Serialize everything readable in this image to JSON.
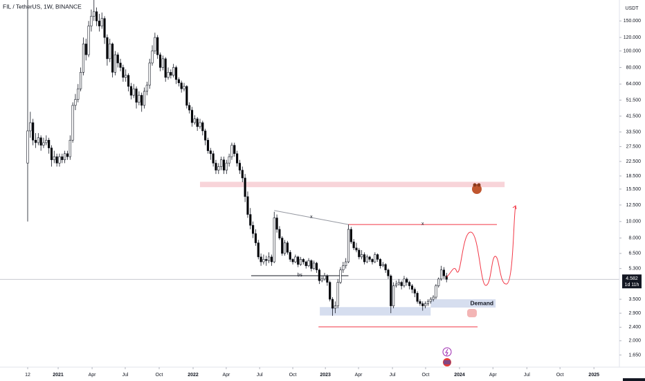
{
  "chart_data": {
    "type": "candlestick",
    "title": "FIL / TetherUS, 1W, BINANCE",
    "currency": "USDT",
    "log_scale": true,
    "grid": false,
    "up_color": "#ffffff",
    "down_color": "#000000",
    "ylim": [
      1.4,
      199
    ],
    "yticks": [
      {
        "value": 150,
        "label": "150.000"
      },
      {
        "value": 120,
        "label": "120.000"
      },
      {
        "value": 100,
        "label": "100.000"
      },
      {
        "value": 80,
        "label": "80.000"
      },
      {
        "value": 64,
        "label": "64.000"
      },
      {
        "value": 51.5,
        "label": "51.500"
      },
      {
        "value": 41.5,
        "label": "41.500"
      },
      {
        "value": 33.5,
        "label": "33.500"
      },
      {
        "value": 27.5,
        "label": "27.500"
      },
      {
        "value": 22.5,
        "label": "22.500"
      },
      {
        "value": 18.5,
        "label": "18.500"
      },
      {
        "value": 15.5,
        "label": "15.500"
      },
      {
        "value": 12.5,
        "label": "12.500"
      },
      {
        "value": 10,
        "label": "10.000"
      },
      {
        "value": 8,
        "label": "8.000"
      },
      {
        "value": 6.5,
        "label": "6.500"
      },
      {
        "value": 5.3,
        "label": "5.300"
      },
      {
        "value": 3.5,
        "label": "3.500"
      },
      {
        "value": 2.9,
        "label": "2.900"
      },
      {
        "value": 2.4,
        "label": "2.400"
      },
      {
        "value": 2,
        "label": "2.000"
      },
      {
        "value": 1.65,
        "label": "1.650"
      }
    ],
    "xlim": [
      -10.44,
      223.2
    ],
    "xticks": [
      {
        "value": 0,
        "label": "12"
      },
      {
        "value": 11.5,
        "label": "2021"
      },
      {
        "value": 24.3,
        "label": "Apr"
      },
      {
        "value": 36.8,
        "label": "Jul"
      },
      {
        "value": 49.6,
        "label": "Oct"
      },
      {
        "value": 62.4,
        "label": "2022"
      },
      {
        "value": 74.9,
        "label": "Apr"
      },
      {
        "value": 87.5,
        "label": "Jul"
      },
      {
        "value": 100,
        "label": "Oct"
      },
      {
        "value": 112.3,
        "label": "2023"
      },
      {
        "value": 124.8,
        "label": "Apr"
      },
      {
        "value": 137.6,
        "label": "Jul"
      },
      {
        "value": 150.1,
        "label": "Oct"
      },
      {
        "value": 162.9,
        "label": "2024"
      },
      {
        "value": 175.5,
        "label": "Apr"
      },
      {
        "value": 188.3,
        "label": "Jul"
      },
      {
        "value": 200.8,
        "label": "Oct"
      },
      {
        "value": 213.6,
        "label": "2025"
      }
    ],
    "last_price": 4.582,
    "countdown": "1d 11h",
    "candles": [
      [
        22,
        199,
        10,
        34
      ],
      [
        34,
        44,
        31,
        38
      ],
      [
        38,
        40,
        28,
        30
      ],
      [
        30,
        33,
        27,
        29
      ],
      [
        29,
        33,
        28,
        31
      ],
      [
        31,
        32,
        26,
        28
      ],
      [
        28,
        31,
        27,
        29
      ],
      [
        29,
        32,
        28,
        30
      ],
      [
        30,
        31,
        25,
        27
      ],
      [
        27,
        28,
        21,
        23
      ],
      [
        23,
        26,
        22,
        24
      ],
      [
        24,
        25,
        21,
        22
      ],
      [
        22,
        25,
        21,
        24
      ],
      [
        24,
        25,
        22,
        23
      ],
      [
        23,
        26,
        22,
        25
      ],
      [
        25,
        26,
        23,
        24
      ],
      [
        24,
        32,
        23,
        30
      ],
      [
        30,
        50,
        29,
        48
      ],
      [
        48,
        56,
        45,
        52
      ],
      [
        52,
        64,
        50,
        60
      ],
      [
        60,
        80,
        58,
        75
      ],
      [
        75,
        120,
        72,
        110
      ],
      [
        110,
        118,
        88,
        95
      ],
      [
        95,
        150,
        92,
        140
      ],
      [
        140,
        175,
        130,
        160
      ],
      [
        160,
        199,
        150,
        170
      ],
      [
        170,
        180,
        140,
        150
      ],
      [
        150,
        165,
        130,
        140
      ],
      [
        140,
        168,
        135,
        155
      ],
      [
        155,
        160,
        110,
        120
      ],
      [
        120,
        125,
        82,
        90
      ],
      [
        90,
        118,
        86,
        110
      ],
      [
        110,
        112,
        70,
        75
      ],
      [
        75,
        100,
        72,
        95
      ],
      [
        95,
        98,
        80,
        85
      ],
      [
        85,
        90,
        76,
        80
      ],
      [
        80,
        83,
        66,
        70
      ],
      [
        70,
        78,
        66,
        72
      ],
      [
        72,
        74,
        58,
        62
      ],
      [
        62,
        65,
        52,
        55
      ],
      [
        55,
        64,
        53,
        60
      ],
      [
        60,
        62,
        46,
        50
      ],
      [
        50,
        58,
        48,
        55
      ],
      [
        55,
        57,
        44,
        48
      ],
      [
        48,
        61,
        46,
        58
      ],
      [
        58,
        66,
        55,
        63
      ],
      [
        63,
        90,
        60,
        85
      ],
      [
        85,
        108,
        82,
        100
      ],
      [
        100,
        128,
        96,
        120
      ],
      [
        120,
        124,
        90,
        95
      ],
      [
        95,
        98,
        76,
        80
      ],
      [
        80,
        94,
        77,
        90
      ],
      [
        90,
        92,
        66,
        70
      ],
      [
        70,
        80,
        68,
        75
      ],
      [
        75,
        78,
        69,
        72
      ],
      [
        72,
        84,
        70,
        80
      ],
      [
        80,
        82,
        64,
        68
      ],
      [
        68,
        70,
        62,
        65
      ],
      [
        65,
        67,
        57,
        60
      ],
      [
        60,
        65,
        58,
        62
      ],
      [
        62,
        63,
        46,
        48
      ],
      [
        48,
        50,
        43,
        45
      ],
      [
        45,
        47,
        36,
        38
      ],
      [
        38,
        42,
        37,
        40
      ],
      [
        40,
        41,
        34,
        36
      ],
      [
        36,
        40,
        35,
        38
      ],
      [
        38,
        39,
        32,
        34
      ],
      [
        34,
        35,
        28,
        30
      ],
      [
        30,
        31,
        25,
        26
      ],
      [
        26,
        27,
        23,
        25
      ],
      [
        25,
        26,
        21,
        22
      ],
      [
        22,
        23,
        19,
        20
      ],
      [
        20,
        22,
        19,
        21
      ],
      [
        21,
        24,
        20,
        23
      ],
      [
        23,
        24,
        19,
        20
      ],
      [
        20,
        23,
        19,
        22
      ],
      [
        22,
        25,
        21,
        24
      ],
      [
        24,
        29,
        23,
        28
      ],
      [
        28,
        29,
        24,
        25
      ],
      [
        25,
        26,
        21,
        22
      ],
      [
        22,
        23,
        19,
        20
      ],
      [
        20,
        21,
        17,
        18
      ],
      [
        18,
        19,
        13,
        14
      ],
      [
        14,
        15,
        10.5,
        11
      ],
      [
        11,
        12,
        9,
        9.5
      ],
      [
        9.5,
        10,
        8,
        8.5
      ],
      [
        8.5,
        9,
        7.2,
        7.5
      ],
      [
        7.5,
        7.8,
        6,
        6.2
      ],
      [
        6.2,
        6.5,
        5.5,
        5.8
      ],
      [
        5.8,
        6.4,
        5.6,
        6
      ],
      [
        6,
        6.3,
        5.5,
        5.9
      ],
      [
        5.9,
        6.6,
        5.7,
        6.2
      ],
      [
        6.2,
        6.4,
        5.5,
        5.8
      ],
      [
        5.8,
        11.4,
        5.7,
        10.5
      ],
      [
        10.5,
        11,
        8.6,
        9
      ],
      [
        9,
        9.4,
        7.8,
        8
      ],
      [
        8,
        8.2,
        6.3,
        6.5
      ],
      [
        6.5,
        7.8,
        6.3,
        7.5
      ],
      [
        7.5,
        7.7,
        6.4,
        6.6
      ],
      [
        6.6,
        6.8,
        5.8,
        6
      ],
      [
        6,
        6.1,
        5.6,
        5.8
      ],
      [
        5.8,
        6.4,
        5.7,
        6.2
      ],
      [
        6.2,
        6.3,
        5.4,
        5.6
      ],
      [
        5.6,
        6.2,
        5.5,
        6
      ],
      [
        6,
        6.1,
        5.6,
        5.8
      ],
      [
        5.8,
        5.9,
        5.3,
        5.5
      ],
      [
        5.5,
        6.1,
        5.4,
        5.9
      ],
      [
        5.9,
        6,
        5.1,
        5.3
      ],
      [
        5.3,
        5.9,
        5.2,
        5.7
      ],
      [
        5.7,
        5.8,
        5,
        5.2
      ],
      [
        5.2,
        5.3,
        4.3,
        4.5
      ],
      [
        4.5,
        4.8,
        4.4,
        4.6
      ],
      [
        4.6,
        5,
        4.5,
        4.8
      ],
      [
        4.8,
        4.9,
        4.2,
        4.4
      ],
      [
        4.4,
        4.5,
        3.4,
        3.5
      ],
      [
        3.5,
        3.6,
        2.8,
        3.1
      ],
      [
        3.1,
        3.4,
        2.9,
        3.2
      ],
      [
        3.2,
        4.6,
        3.1,
        4.4
      ],
      [
        4.4,
        5.4,
        4.3,
        5.2
      ],
      [
        5.2,
        5.8,
        5,
        5.5
      ],
      [
        5.5,
        6.1,
        5.3,
        5.8
      ],
      [
        5.8,
        9.6,
        5.7,
        9
      ],
      [
        9,
        9.3,
        7.4,
        7.6
      ],
      [
        7.6,
        7.9,
        6.8,
        7
      ],
      [
        7,
        7.5,
        6.6,
        6.8
      ],
      [
        6.8,
        7,
        6,
        6.2
      ],
      [
        6.2,
        6.8,
        6,
        6.4
      ],
      [
        6.4,
        6.6,
        5.6,
        5.8
      ],
      [
        5.8,
        6.4,
        5.7,
        6.2
      ],
      [
        6.2,
        6.3,
        5.8,
        6
      ],
      [
        6,
        6.1,
        5.6,
        5.8
      ],
      [
        5.8,
        6.6,
        5.7,
        6.4
      ],
      [
        6.4,
        6.5,
        5.8,
        6
      ],
      [
        6,
        6.1,
        5.3,
        5.5
      ],
      [
        5.5,
        5.8,
        5.4,
        5.6
      ],
      [
        5.6,
        5.7,
        5,
        5.2
      ],
      [
        5.2,
        5.3,
        4.6,
        4.8
      ],
      [
        4.8,
        4.9,
        2.9,
        3.2
      ],
      [
        3.2,
        4.4,
        3.1,
        4.2
      ],
      [
        4.2,
        4.5,
        4.1,
        4.3
      ],
      [
        4.3,
        4.6,
        4.2,
        4.4
      ],
      [
        4.4,
        4.5,
        4,
        4.2
      ],
      [
        4.2,
        4.8,
        4.1,
        4.6
      ],
      [
        4.6,
        4.7,
        4.2,
        4.4
      ],
      [
        4.4,
        4.5,
        4,
        4.2
      ],
      [
        4.2,
        4.3,
        3.8,
        4
      ],
      [
        4,
        4.1,
        3.6,
        3.8
      ],
      [
        3.8,
        3.9,
        3.3,
        3.4
      ],
      [
        3.4,
        3.5,
        3.2,
        3.3
      ],
      [
        3.3,
        3.4,
        3,
        3.2
      ],
      [
        3.2,
        3.4,
        3.1,
        3.3
      ],
      [
        3.3,
        3.5,
        3.2,
        3.4
      ],
      [
        3.4,
        3.6,
        3.3,
        3.5
      ],
      [
        3.5,
        3.7,
        3.4,
        3.6
      ],
      [
        3.6,
        4.3,
        3.5,
        4.2
      ],
      [
        4.2,
        4.7,
        4.1,
        4.6
      ],
      [
        4.6,
        5.5,
        4.5,
        5.2
      ],
      [
        5.2,
        5.4,
        4.6,
        4.8
      ],
      [
        4.8,
        5,
        4.4,
        4.582
      ]
    ],
    "shapes": [
      {
        "kind": "zone",
        "color": "#f8d4d9",
        "x": [
          65,
          179.9
        ],
        "y": [
          15.9,
          17.1
        ]
      },
      {
        "kind": "zone",
        "color": "#d6deef",
        "x": [
          110.2,
          152
        ],
        "y": [
          2.81,
          3.15
        ]
      },
      {
        "kind": "zone",
        "color": "#d6deef",
        "label": "Demand",
        "x": [
          152,
          176.5
        ],
        "y": [
          3.13,
          3.5
        ]
      },
      {
        "kind": "line",
        "color": "#f23645",
        "label": "x",
        "x": [
          121,
          177
        ],
        "y": [
          9.6,
          9.6
        ]
      },
      {
        "kind": "line",
        "color": "#9598a1",
        "label": "x",
        "x": [
          93,
          121
        ],
        "y": [
          11.6,
          9.6
        ]
      },
      {
        "kind": "line",
        "color": "#131722",
        "label": "bs",
        "x": [
          84.3,
          121
        ],
        "y": [
          4.81,
          4.81
        ]
      },
      {
        "kind": "line",
        "color": "#f23645",
        "x": [
          109.7,
          169.7
        ],
        "y": [
          2.41,
          2.41
        ]
      }
    ]
  }
}
